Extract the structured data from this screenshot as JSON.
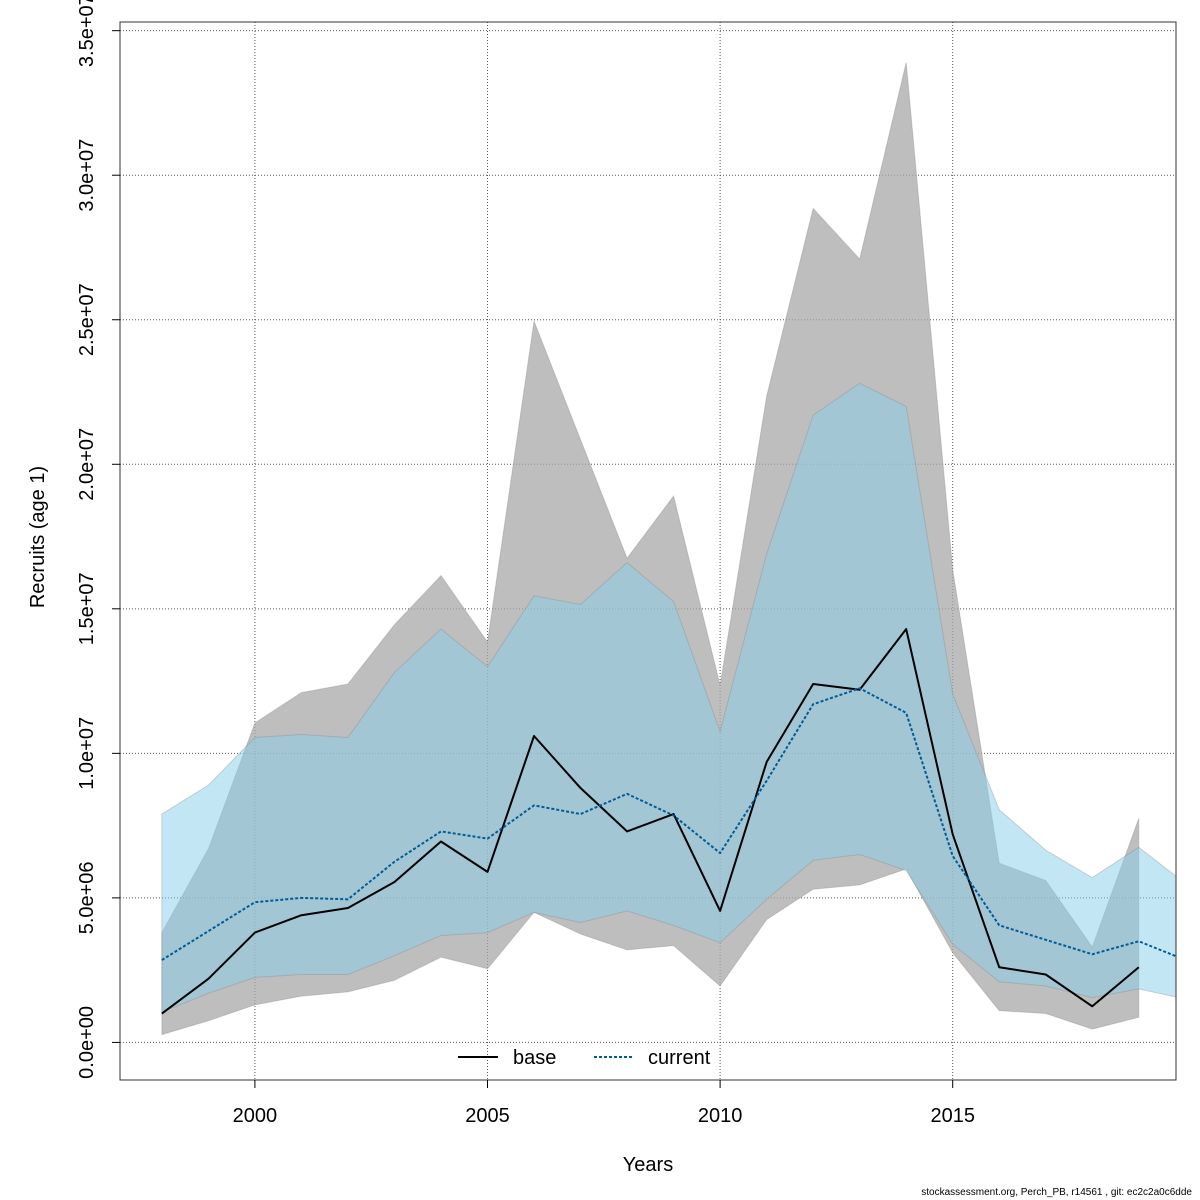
{
  "chart_data": {
    "type": "line",
    "xlabel": "Years",
    "ylabel": "Recruits (age 1)",
    "xlim": [
      1997.1,
      2019.8
    ],
    "ylim": [
      -1300000.0,
      35300000.0
    ],
    "x_ticks": [
      2000,
      2005,
      2010,
      2015
    ],
    "y_ticks": [
      0,
      5000000,
      10000000,
      15000000,
      20000000,
      25000000,
      30000000,
      35000000
    ],
    "y_tick_labels": [
      "0.0e+00",
      "5.0e+06",
      "1.0e+07",
      "1.5e+07",
      "2.0e+07",
      "2.5e+07",
      "3.0e+07",
      "3.5e+07"
    ],
    "grid": true,
    "legend_position": "bottom-center",
    "series": [
      {
        "name": "base",
        "color": "#000000",
        "line_style": "solid",
        "band_color": "#a8a8a8",
        "x": [
          1998,
          1999,
          2000,
          2001,
          2002,
          2003,
          2004,
          2005,
          2006,
          2007,
          2008,
          2009,
          2010,
          2011,
          2012,
          2013,
          2014,
          2015,
          2016,
          2017,
          2018,
          2019
        ],
        "values": [
          1000000,
          2200000,
          3800000,
          4400000,
          4650000,
          5550000,
          6950000,
          5900000,
          10600000,
          8800000,
          7300000,
          7900000,
          4550000,
          9700000,
          12400000,
          12200000,
          14300000,
          7200000,
          2600000,
          2350000,
          1250000,
          2600000
        ],
        "upper": [
          3800000,
          6700000,
          11050000,
          12100000,
          12400000,
          14450000,
          16150000,
          13850000,
          24950000,
          20850000,
          16750000,
          18900000,
          12350000,
          22350000,
          28850000,
          27100000,
          33900000,
          16350000,
          6200000,
          5600000,
          3300000,
          7750000
        ],
        "lower": [
          270000,
          750000,
          1300000,
          1600000,
          1750000,
          2150000,
          2950000,
          2550000,
          4500000,
          3750000,
          3200000,
          3350000,
          1950000,
          4250000,
          5300000,
          5450000,
          6000000,
          3100000,
          1100000,
          1000000,
          460000,
          870000
        ]
      },
      {
        "name": "current",
        "color": "#005b96",
        "line_style": "dotted",
        "band_color": "#87ceeb",
        "x": [
          1998,
          1999,
          2000,
          2001,
          2002,
          2003,
          2004,
          2005,
          2006,
          2007,
          2008,
          2009,
          2010,
          2011,
          2012,
          2013,
          2014,
          2015,
          2016,
          2017,
          2018,
          2019,
          2020
        ],
        "values": [
          2850000,
          3850000,
          4850000,
          5000000,
          4950000,
          6250000,
          7300000,
          7050000,
          8200000,
          7900000,
          8600000,
          7850000,
          6550000,
          9050000,
          11700000,
          12250000,
          11400000,
          6450000,
          4050000,
          3550000,
          3050000,
          3500000,
          2850000
        ],
        "upper": [
          7900000,
          8900000,
          10550000,
          10650000,
          10550000,
          12800000,
          14300000,
          13000000,
          15450000,
          15150000,
          16600000,
          15250000,
          10750000,
          16900000,
          21700000,
          22800000,
          22000000,
          12050000,
          8050000,
          6650000,
          5700000,
          6750000,
          5500000
        ],
        "lower": [
          1050000,
          1700000,
          2250000,
          2350000,
          2350000,
          3000000,
          3700000,
          3800000,
          4500000,
          4150000,
          4550000,
          4050000,
          3450000,
          4950000,
          6300000,
          6500000,
          5950000,
          3400000,
          2100000,
          1950000,
          1550000,
          1850000,
          1500000
        ]
      }
    ]
  },
  "footer_text": "stockassessment.org, Perch_PB, r14561 , git: ec2c2a0c6dde"
}
